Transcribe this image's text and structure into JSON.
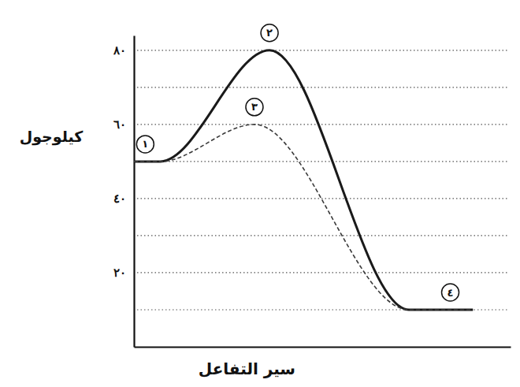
{
  "chart_data": {
    "type": "line",
    "x_label": "سير التفاعل",
    "y_label": "كيلوجول",
    "xlim": [
      0,
      100
    ],
    "ylim": [
      0,
      84
    ],
    "yticks": [
      {
        "value": 10,
        "label": null
      },
      {
        "value": 20,
        "label": "٢٠"
      },
      {
        "value": 30,
        "label": null
      },
      {
        "value": 40,
        "label": "٤٠"
      },
      {
        "value": 50,
        "label": null
      },
      {
        "value": 60,
        "label": "٦٠"
      },
      {
        "value": 70,
        "label": null
      },
      {
        "value": 80,
        "label": "٨٠"
      }
    ],
    "grid": true,
    "tick_labels": "y",
    "series": [
      {
        "color": "#1a1a1a",
        "line_style": "solid",
        "x": [
          0,
          7,
          36,
          73,
          90
        ],
        "values": [
          50,
          50,
          80,
          10,
          10
        ]
      },
      {
        "color": "#3a3a3a",
        "line_style": "dashed",
        "x": [
          0,
          7,
          32,
          73,
          90
        ],
        "values": [
          50,
          50,
          60,
          10,
          10
        ]
      }
    ],
    "annotations": [
      {
        "text": "١",
        "x": 3,
        "y": 50
      },
      {
        "text": "٢",
        "x": 36,
        "y": 80
      },
      {
        "text": "٣",
        "x": 32,
        "y": 60
      },
      {
        "text": "٤",
        "x": 84,
        "y": 10
      }
    ]
  }
}
